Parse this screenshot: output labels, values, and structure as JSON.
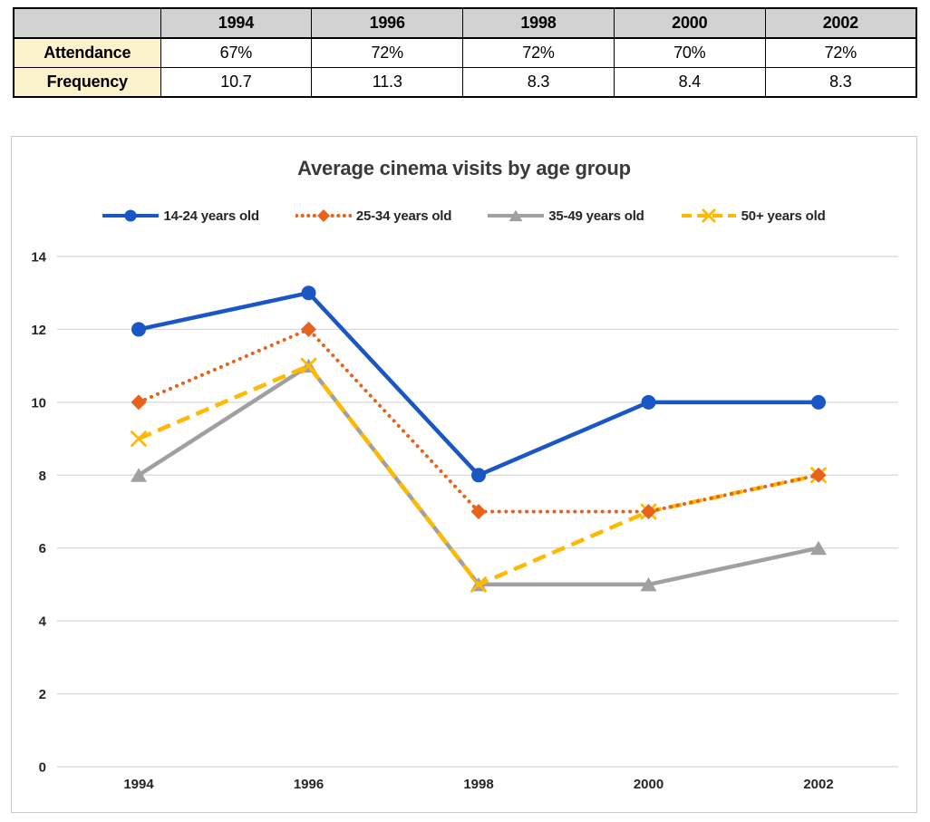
{
  "table": {
    "header": [
      "",
      "1994",
      "1996",
      "1998",
      "2000",
      "2002"
    ],
    "rows": [
      {
        "label": "Attendance",
        "values": [
          "67%",
          "72%",
          "72%",
          "70%",
          "72%"
        ]
      },
      {
        "label": "Frequency",
        "values": [
          "10.7",
          "11.3",
          "8.3",
          "8.4",
          "8.3"
        ]
      }
    ],
    "header_bg": "#D2D2D2",
    "row_label_bg": "#FCF2CC"
  },
  "chart_data": {
    "type": "line",
    "title": "Average cinema visits by age group",
    "categories": [
      "1994",
      "1996",
      "1998",
      "2000",
      "2002"
    ],
    "series": [
      {
        "name": "14-24 years old",
        "color": "#1A57C5",
        "marker": "circle",
        "line": "solid",
        "values": [
          12,
          13,
          8,
          10,
          10
        ]
      },
      {
        "name": "25-34 years old",
        "color": "#E8621C",
        "marker": "diamond",
        "line": "dotted",
        "values": [
          10,
          12,
          7,
          7,
          8
        ]
      },
      {
        "name": "35-49 years old",
        "color": "#A0A0A0",
        "marker": "triangle",
        "line": "solid",
        "values": [
          8,
          11,
          5,
          5,
          6
        ]
      },
      {
        "name": "50+ years old",
        "color": "#FFB900",
        "marker": "x",
        "line": "dashed",
        "values": [
          9,
          11,
          5,
          7,
          8
        ]
      }
    ],
    "ylim": [
      0,
      14
    ],
    "yticks": [
      0,
      2,
      4,
      6,
      8,
      10,
      12,
      14
    ],
    "grid": true,
    "legend_position": "top",
    "gridline_color": "#D8D8D8",
    "tick_color": "#262626",
    "title_color": "#3A3A3A"
  }
}
